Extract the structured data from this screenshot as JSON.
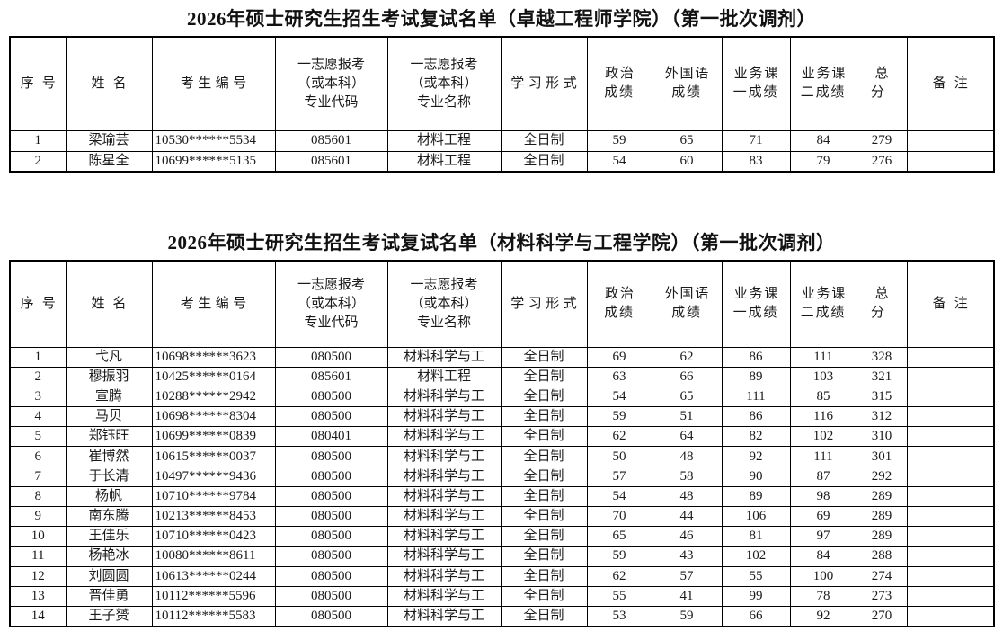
{
  "page": {
    "background": "#ffffff",
    "text_color": "#1a1a1a",
    "border_color": "#000000"
  },
  "tables": [
    {
      "title": "2026年硕士研究生招生考试复试名单（卓越工程师学院）（第一批次调剂）",
      "headers": [
        "序号",
        "姓名",
        "考生编号",
        "一志愿报考\n（或本科）\n专业代码",
        "一志愿报考\n（或本科）\n专业名称",
        "学习形式",
        "政治\n成绩",
        "外国语\n成绩",
        "业务课\n一成绩",
        "业务课\n二成绩",
        "总分",
        "备注"
      ],
      "rows": [
        [
          "1",
          "梁瑜芸",
          "10530******5534",
          "085601",
          "材料工程",
          "全日制",
          "59",
          "65",
          "71",
          "84",
          "279",
          ""
        ],
        [
          "2",
          "陈星全",
          "10699******5135",
          "085601",
          "材料工程",
          "全日制",
          "54",
          "60",
          "83",
          "79",
          "276",
          ""
        ]
      ]
    },
    {
      "title": "2026年硕士研究生招生考试复试名单（材料科学与工程学院）（第一批次调剂）",
      "headers": [
        "序号",
        "姓名",
        "考生编号",
        "一志愿报考\n（或本科）\n专业代码",
        "一志愿报考\n（或本科）\n专业名称",
        "学习形式",
        "政治\n成绩",
        "外国语\n成绩",
        "业务课\n一成绩",
        "业务课\n二成绩",
        "总分",
        "备注"
      ],
      "rows": [
        [
          "1",
          "弋凡",
          "10698******3623",
          "080500",
          "材料科学与工",
          "全日制",
          "69",
          "62",
          "86",
          "111",
          "328",
          ""
        ],
        [
          "2",
          "穆振羽",
          "10425******0164",
          "085601",
          "材料工程",
          "全日制",
          "63",
          "66",
          "89",
          "103",
          "321",
          ""
        ],
        [
          "3",
          "宣腾",
          "10288******2942",
          "080500",
          "材料科学与工",
          "全日制",
          "54",
          "65",
          "111",
          "85",
          "315",
          ""
        ],
        [
          "4",
          "马贝",
          "10698******8304",
          "080500",
          "材料科学与工",
          "全日制",
          "59",
          "51",
          "86",
          "116",
          "312",
          ""
        ],
        [
          "5",
          "郑钰旺",
          "10699******0839",
          "080401",
          "材料科学与工",
          "全日制",
          "62",
          "64",
          "82",
          "102",
          "310",
          ""
        ],
        [
          "6",
          "崔博然",
          "10615******0037",
          "080500",
          "材料科学与工",
          "全日制",
          "50",
          "48",
          "92",
          "111",
          "301",
          ""
        ],
        [
          "7",
          "于长清",
          "10497******9436",
          "080500",
          "材料科学与工",
          "全日制",
          "57",
          "58",
          "90",
          "87",
          "292",
          ""
        ],
        [
          "8",
          "杨帆",
          "10710******9784",
          "080500",
          "材料科学与工",
          "全日制",
          "54",
          "48",
          "89",
          "98",
          "289",
          ""
        ],
        [
          "9",
          "南东腾",
          "10213******8453",
          "080500",
          "材料科学与工",
          "全日制",
          "70",
          "44",
          "106",
          "69",
          "289",
          ""
        ],
        [
          "10",
          "王佳乐",
          "10710******0423",
          "080500",
          "材料科学与工",
          "全日制",
          "65",
          "46",
          "81",
          "97",
          "289",
          ""
        ],
        [
          "11",
          "杨艳冰",
          "10080******8611",
          "080500",
          "材料科学与工",
          "全日制",
          "59",
          "43",
          "102",
          "84",
          "288",
          ""
        ],
        [
          "12",
          "刘圆圆",
          "10613******0244",
          "080500",
          "材料科学与工",
          "全日制",
          "62",
          "57",
          "55",
          "100",
          "274",
          ""
        ],
        [
          "13",
          "晋佳勇",
          "10112******5596",
          "080500",
          "材料科学与工",
          "全日制",
          "55",
          "41",
          "99",
          "78",
          "273",
          ""
        ],
        [
          "14",
          "王子赟",
          "10112******5583",
          "080500",
          "材料科学与工",
          "全日制",
          "53",
          "59",
          "66",
          "92",
          "270",
          ""
        ]
      ]
    }
  ]
}
